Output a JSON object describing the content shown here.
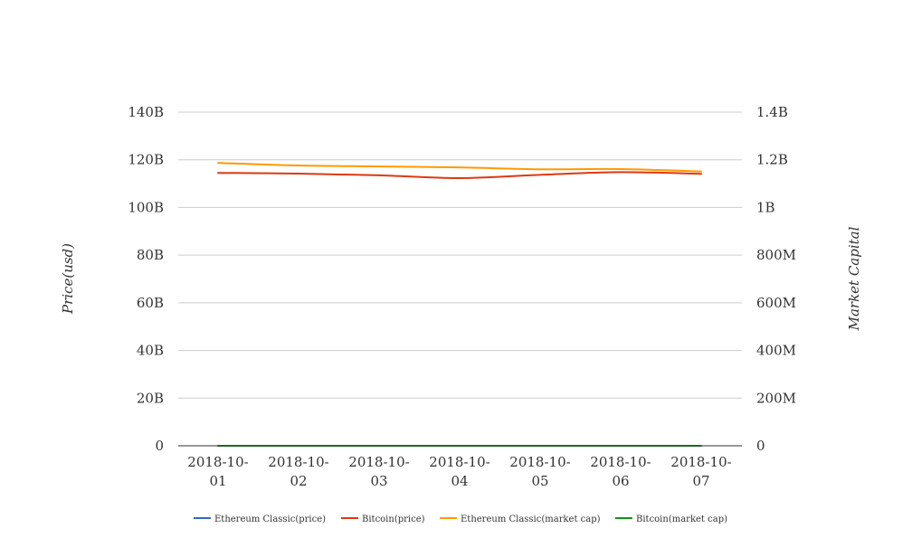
{
  "chart_data": {
    "type": "line",
    "x": [
      "2018-10-01",
      "2018-10-02",
      "2018-10-03",
      "2018-10-04",
      "2018-10-05",
      "2018-10-06",
      "2018-10-07"
    ],
    "x_tick_labels": [
      [
        "2018-10-",
        "01"
      ],
      [
        "2018-10-",
        "02"
      ],
      [
        "2018-10-",
        "03"
      ],
      [
        "2018-10-",
        "04"
      ],
      [
        "2018-10-",
        "05"
      ],
      [
        "2018-10-",
        "06"
      ],
      [
        "2018-10-",
        "07"
      ]
    ],
    "ylabel_left": "Price(usd)",
    "ylabel_right": "Market Capital",
    "ylim_left": [
      0,
      140000000000
    ],
    "ylim_right": [
      0,
      1400000000
    ],
    "yticks_left": [
      "0",
      "20B",
      "40B",
      "60B",
      "80B",
      "100B",
      "120B",
      "140B"
    ],
    "yticks_right": [
      "0",
      "200M",
      "400M",
      "600M",
      "800M",
      "1B",
      "1.2B",
      "1.4B"
    ],
    "grid": true,
    "legend_position": "bottom",
    "series": [
      {
        "name": "Ethereum Classic(price)",
        "axis": "left",
        "color": "#3366cc",
        "values": [
          10.5,
          10.4,
          10.3,
          10.1,
          10.3,
          10.4,
          10.3
        ]
      },
      {
        "name": "Bitcoin(price)",
        "axis": "left",
        "color": "#dc3912",
        "values": [
          114500000000,
          114200000000,
          113500000000,
          112300000000,
          113700000000,
          114800000000,
          114100000000
        ]
      },
      {
        "name": "Ethereum Classic(market cap)",
        "axis": "right",
        "color": "#ff9900",
        "values": [
          1187000000,
          1176000000,
          1172000000,
          1168000000,
          1160000000,
          1161000000,
          1151000000
        ]
      },
      {
        "name": "Bitcoin(market cap)",
        "axis": "right",
        "color": "#109618",
        "values": [
          6600,
          6590,
          6540,
          6500,
          6580,
          6620,
          6600
        ]
      }
    ]
  }
}
